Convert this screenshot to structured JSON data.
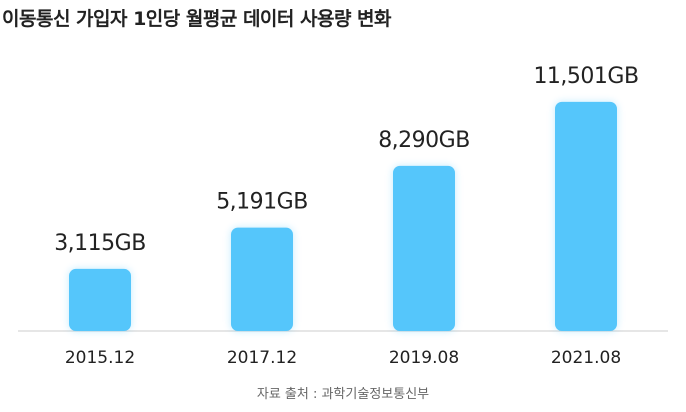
{
  "chart_data": {
    "type": "bar",
    "title": "이동통신 가입자 1인당 월평균 데이터 사용량 변화",
    "categories": [
      "2015.12",
      "2017.12",
      "2019.08",
      "2021.08"
    ],
    "values": [
      3115,
      5191,
      8290,
      11501
    ],
    "data_labels": [
      "3,115GB",
      "5,191GB",
      "8,290GB",
      "11,501GB"
    ],
    "unit": "GB",
    "xlabel": "",
    "ylabel": "",
    "ylim": [
      0,
      13500
    ],
    "grid": false,
    "legend": "none",
    "bar_color": "#55C6FB",
    "axis_color": "#cccccc"
  },
  "source": "자료 출처 : 과학기술정보통신부"
}
